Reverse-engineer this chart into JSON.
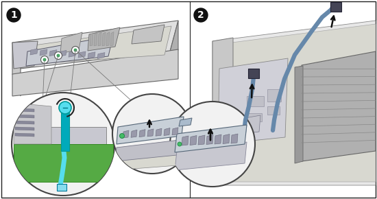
{
  "fig_width": 5.5,
  "fig_height": 2.9,
  "dpi": 100,
  "bg_color": "#ffffff",
  "border_color": "#222222",
  "step1_label": "1",
  "step2_label": "2",
  "label_bg": "#111111",
  "label_fg": "#ffffff",
  "label_fontsize": 10,
  "chassis_light": "#e8e8e8",
  "chassis_mid": "#cccccc",
  "chassis_dark": "#aaaaaa",
  "chassis_edge": "#555555",
  "green_dot": "#44bb66",
  "cyan_light": "#55ddee",
  "cyan_dark": "#00aabb",
  "cable_blue": "#5577aa",
  "cable_gray": "#888899",
  "connector_dark": "#444455",
  "pcb_green": "#55aa44",
  "arrow_color": "#111111",
  "circle_outline": "#444444",
  "card_fill": "#c8d0d8",
  "card_edge": "#556677",
  "heatsink_fill": "#999999",
  "heatsink_edge": "#555555",
  "slot_color": "#888888",
  "white": "#ffffff",
  "near_white": "#f0f0f0",
  "light_gray": "#dddddd",
  "mid_gray": "#bbbbbb",
  "board_color": "#d8d8d0"
}
